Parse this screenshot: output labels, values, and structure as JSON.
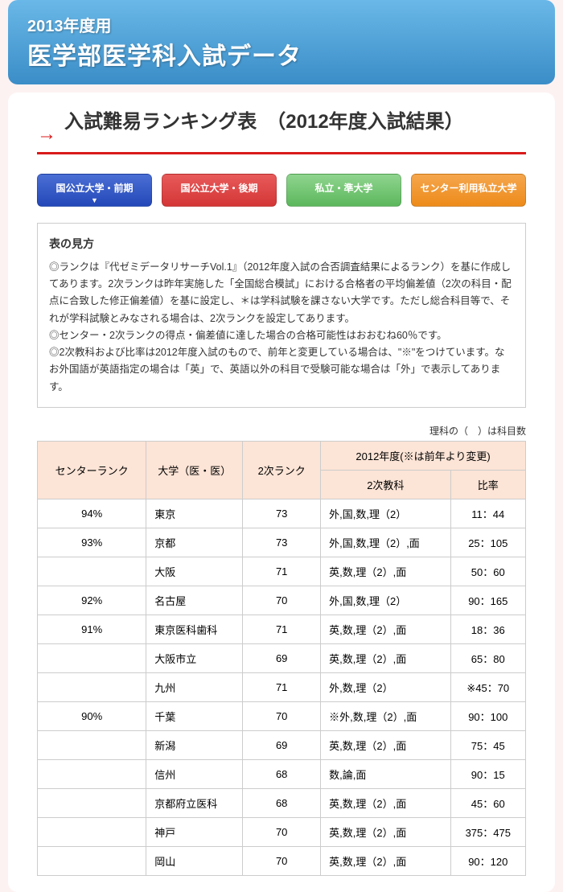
{
  "header": {
    "year": "2013年度用",
    "title": "医学部医学科入試データ"
  },
  "section_title": "入試難易ランキング表　（2012年度入試結果）",
  "tabs": [
    {
      "label": "国公立大学・前期",
      "style": "active",
      "interactable": true
    },
    {
      "label": "国公立大学・後期",
      "style": "red",
      "interactable": true
    },
    {
      "label": "私立・準大学",
      "style": "green",
      "interactable": true
    },
    {
      "label": "センター利用私立大学",
      "style": "orange",
      "interactable": true
    }
  ],
  "guide": {
    "title": "表の見方",
    "lines": [
      "◎ランクは『代ゼミデータリサーチVol.1』（2012年度入試の合否調査結果によるランク）を基に作成してあります。2次ランクは昨年実施した「全国総合模試」における合格者の平均偏差値（2次の科目・配点に合致した修正偏差値）を基に設定し、＊は学科試験を課さない大学です。ただし総合科目等で、それが学科試験とみなされる場合は、2次ランクを設定してあります。",
      "◎センター・2次ランクの得点・偏差値に達した場合の合格可能性はおおむね60％です。",
      "◎2次教科および比率は2012年度入試のもので、前年と変更している場合は、\"※\"をつけています。なお外国語が英語指定の場合は「英」で、英語以外の科目で受験可能な場合は「外」で表示してあります。"
    ]
  },
  "note_right": "理科の（　）は科目数",
  "columns": {
    "center_rank": "センターランク",
    "university": "大学（医・医）",
    "second_rank": "2次ランク",
    "year_header": "2012年度(※は前年より変更)",
    "second_subject": "2次教科",
    "ratio": "比率"
  },
  "rows": [
    {
      "rank": "94%",
      "uni": "東京",
      "second": "73",
      "subj": "外,国,数,理（2）",
      "ratio": "11：44"
    },
    {
      "rank": "93%",
      "uni": "京都",
      "second": "73",
      "subj": "外,国,数,理（2）,面",
      "ratio": "25：105"
    },
    {
      "rank": "",
      "uni": "大阪",
      "second": "71",
      "subj": "英,数,理（2）,面",
      "ratio": "50：60"
    },
    {
      "rank": "92%",
      "uni": "名古屋",
      "second": "70",
      "subj": "外,国,数,理（2）",
      "ratio": "90：165"
    },
    {
      "rank": "91%",
      "uni": "東京医科歯科",
      "second": "71",
      "subj": "英,数,理（2）,面",
      "ratio": "18：36"
    },
    {
      "rank": "",
      "uni": "大阪市立",
      "second": "69",
      "subj": "英,数,理（2）,面",
      "ratio": "65：80"
    },
    {
      "rank": "",
      "uni": "九州",
      "second": "71",
      "subj": "外,数,理（2）",
      "ratio": "※45：70"
    },
    {
      "rank": "90%",
      "uni": "千葉",
      "second": "70",
      "subj": "※外,数,理（2）,面",
      "ratio": "90：100"
    },
    {
      "rank": "",
      "uni": "新潟",
      "second": "69",
      "subj": "英,数,理（2）,面",
      "ratio": "75：45"
    },
    {
      "rank": "",
      "uni": "信州",
      "second": "68",
      "subj": "数,論,面",
      "ratio": "90：15"
    },
    {
      "rank": "",
      "uni": "京都府立医科",
      "second": "68",
      "subj": "英,数,理（2）,面",
      "ratio": "45：60"
    },
    {
      "rank": "",
      "uni": "神戸",
      "second": "70",
      "subj": "英,数,理（2）,面",
      "ratio": "375：475"
    },
    {
      "rank": "",
      "uni": "岡山",
      "second": "70",
      "subj": "英,数,理（2）,面",
      "ratio": "90：120"
    }
  ],
  "colors": {
    "header_grad_top": "#6ab8e8",
    "header_grad_bottom": "#3a8dc7",
    "accent_red": "#d81b1b",
    "th_bg": "#fce4d6",
    "body_bg": "#fdf2f2"
  }
}
